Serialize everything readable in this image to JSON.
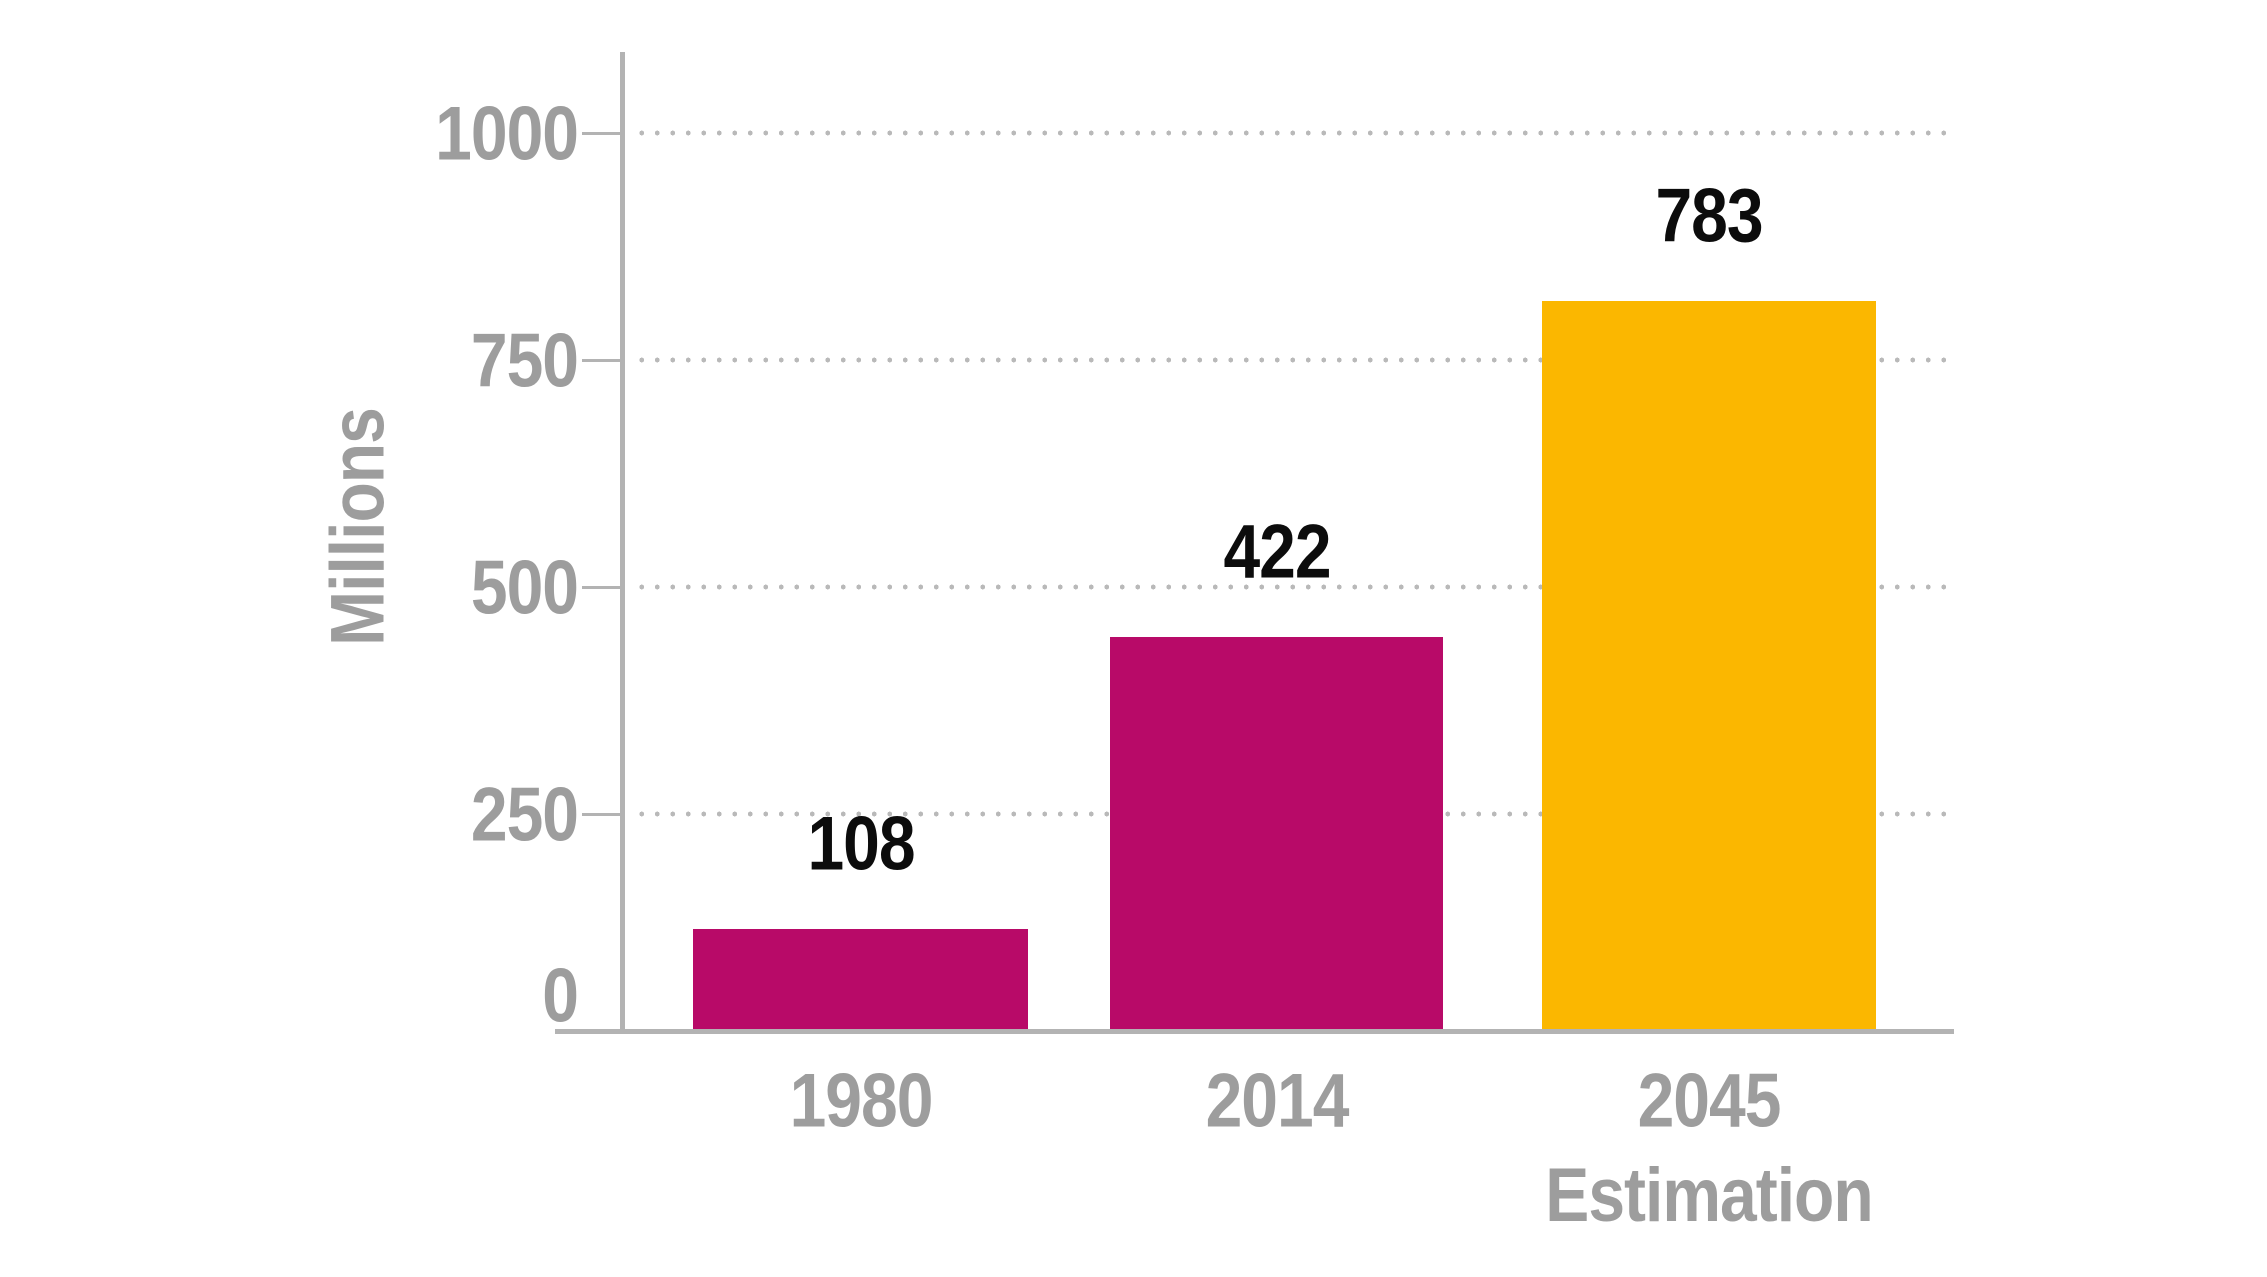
{
  "chart_data": {
    "type": "bar",
    "title": "",
    "xlabel": "",
    "ylabel": "Millions",
    "ylim": [
      0,
      1100
    ],
    "yticks": [
      {
        "value": 1000,
        "label": "1000"
      },
      {
        "value": 750,
        "label": "750"
      },
      {
        "value": 500,
        "label": "500"
      },
      {
        "value": 250,
        "label": "250"
      },
      {
        "value": 0,
        "label": "0"
      }
    ],
    "grid": {
      "horizontal": true,
      "style": "dotted",
      "color": "#b9b9b9"
    },
    "legend": "none",
    "categories": [
      "1980",
      "2014",
      "2045 Estimation"
    ],
    "values": [
      108,
      422,
      783
    ],
    "bars": [
      {
        "category_lines": [
          "1980",
          ""
        ],
        "value": 108,
        "value_label": "108",
        "color": "#b80a68"
      },
      {
        "category_lines": [
          "2014",
          ""
        ],
        "value": 422,
        "value_label": "422",
        "color": "#b80a68"
      },
      {
        "category_lines": [
          "2045",
          "Estimation"
        ],
        "value": 783,
        "value_label": "783",
        "color": "#fbb700"
      }
    ],
    "colors": {
      "bar_default": "#b80a68",
      "bar_highlight": "#fbb700",
      "axis_line": "#b3b3b3",
      "grid_dots": "#b9b9b9",
      "tick_label": "#9d9d9d",
      "category_label": "#9d9d9d",
      "value_label": "#0c0c0c"
    }
  }
}
